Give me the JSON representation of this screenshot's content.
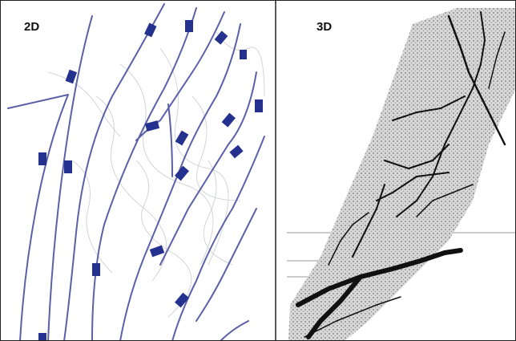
{
  "panels": [
    {
      "label": "2D"
    },
    {
      "label": "3D"
    }
  ]
}
